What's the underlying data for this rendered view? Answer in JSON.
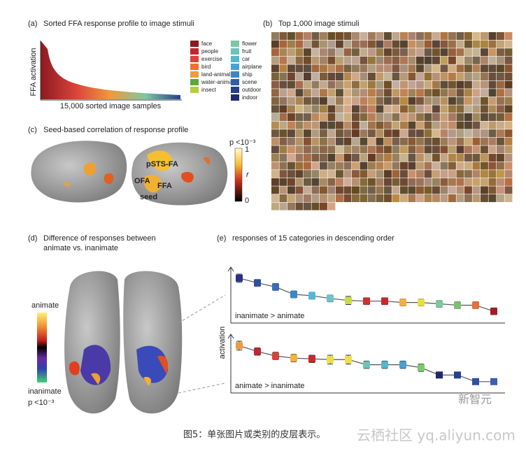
{
  "panel_a": {
    "label": "(a)",
    "title": "Sorted FFA response profile to image stimuli",
    "y_label": "FFA activation",
    "x_label": "15,000 sorted image samples",
    "legend": [
      {
        "name": "face",
        "color": "#8b1a1f"
      },
      {
        "name": "people",
        "color": "#c0282d"
      },
      {
        "name": "exercise",
        "color": "#d9433a"
      },
      {
        "name": "bird",
        "color": "#e8703a"
      },
      {
        "name": "land-animal",
        "color": "#f09a3c"
      },
      {
        "name": "water-animal",
        "color": "#5aaa3c"
      },
      {
        "name": "insect",
        "color": "#b5cf3a"
      },
      {
        "name": "flower",
        "color": "#7cc8a0"
      },
      {
        "name": "fruit",
        "color": "#6dc3b8"
      },
      {
        "name": "car",
        "color": "#55b8cc"
      },
      {
        "name": "airplane",
        "color": "#4aa0d0"
      },
      {
        "name": "ship",
        "color": "#3c86c8"
      },
      {
        "name": "scene",
        "color": "#2f5fa8"
      },
      {
        "name": "outdoor",
        "color": "#263f8f"
      },
      {
        "name": "indoor",
        "color": "#1d2a6e"
      }
    ]
  },
  "panel_b": {
    "label": "(b)",
    "title": "Top 1,000 image stimuli"
  },
  "panel_c": {
    "label": "(c)",
    "title": "Seed-based correlation of response profile",
    "regions": [
      "pSTS-FA",
      "OFA",
      "FFA",
      "seed"
    ],
    "colorbar": {
      "title": "p <10⁻³",
      "max": "1",
      "symbol": "r",
      "min": "0"
    }
  },
  "panel_d": {
    "label": "(d)",
    "title_lines": [
      "Difference of responses between",
      "animate vs. inanimate"
    ],
    "colorbar": {
      "top": "animate",
      "bottom": "inanimate",
      "p": "p <10⁻³"
    }
  },
  "panel_e": {
    "label": "(e)",
    "title": "responses of 15 categories in descending order",
    "y_label": "activation",
    "plots": [
      {
        "label": "inanimate > animate",
        "values": [
          6.2,
          5.5,
          4.9,
          3.8,
          3.6,
          3.2,
          2.9,
          2.8,
          2.8,
          2.6,
          2.6,
          2.4,
          2.2,
          2.2,
          1.3
        ],
        "errors": [
          0.6,
          0.5,
          0.5,
          0.5,
          0.5,
          0.5,
          0.6,
          0.5,
          0.5,
          0.5,
          0.5,
          0.5,
          0.5,
          0.5,
          0.5
        ],
        "colors": [
          "#2a2f8a",
          "#2f4fa0",
          "#3a6cb8",
          "#3a86c8",
          "#55b8d6",
          "#6dc3c8",
          "#c8dc48",
          "#d0302d",
          "#c8282d",
          "#f0b43c",
          "#e8e040",
          "#7cc8a0",
          "#7cc070",
          "#e8703a",
          "#a01e24"
        ]
      },
      {
        "label": "animate > inanimate",
        "values": [
          6.0,
          5.2,
          4.6,
          4.3,
          4.2,
          4.1,
          4.1,
          3.4,
          3.4,
          3.4,
          3.0,
          2.0,
          2.0,
          1.1,
          1.1
        ],
        "errors": [
          0.6,
          0.5,
          0.5,
          0.5,
          0.5,
          0.6,
          0.6,
          0.5,
          0.5,
          0.5,
          0.5,
          0.4,
          0.4,
          0.4,
          0.4
        ],
        "colors": [
          "#f09a3c",
          "#c0282d",
          "#d9433a",
          "#f0b43c",
          "#c8282d",
          "#e8e040",
          "#f0e040",
          "#6dc3b8",
          "#55b8cc",
          "#4aa0d0",
          "#7cc870",
          "#1d2a6e",
          "#263f8f",
          "#2f4fa0",
          "#3a5fb0"
        ]
      }
    ]
  },
  "caption": "图5：单张图片或类别的皮层表示。",
  "watermarks": [
    "新智元",
    "云栖社区 yq.aliyun.com"
  ]
}
